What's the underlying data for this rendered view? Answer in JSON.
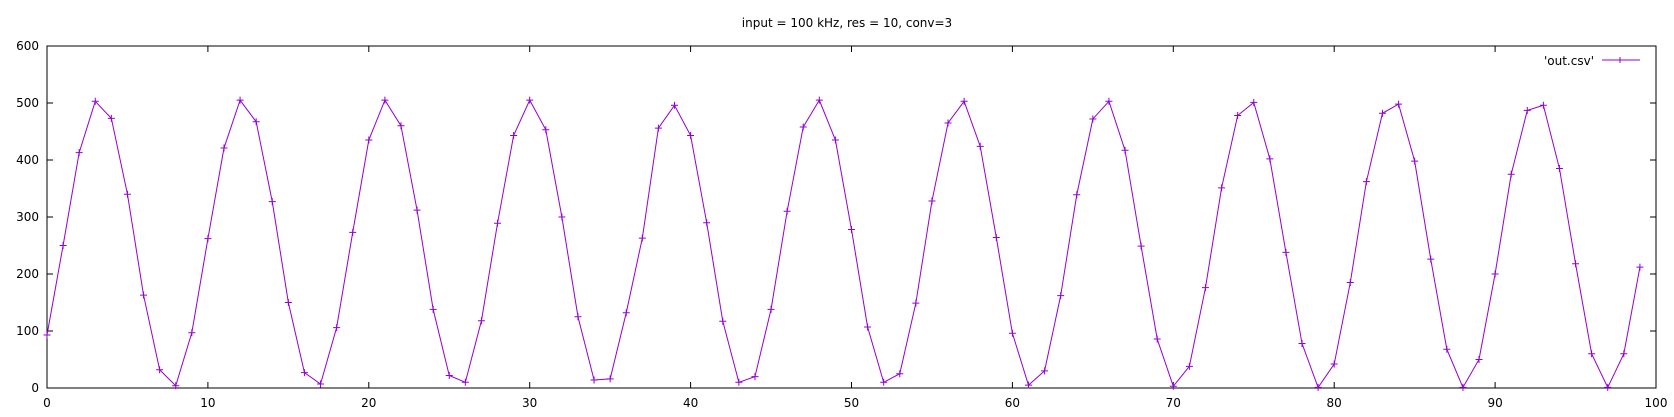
{
  "chart_data": {
    "type": "line",
    "title": "input = 100 kHz, res = 10, conv=3",
    "xlabel": "",
    "ylabel": "",
    "xlim": [
      0,
      100
    ],
    "ylim": [
      0,
      600
    ],
    "x_ticks": [
      0,
      10,
      20,
      30,
      40,
      50,
      60,
      70,
      80,
      90,
      100
    ],
    "y_ticks": [
      0,
      100,
      200,
      300,
      400,
      500,
      600
    ],
    "grid": false,
    "legend_position": "top-right",
    "series": [
      {
        "name": "'out.csv'",
        "color": "#9400d3",
        "marker": "plus",
        "x": [
          0,
          1,
          2,
          3,
          4,
          5,
          6,
          7,
          8,
          9,
          10,
          11,
          12,
          13,
          14,
          15,
          16,
          17,
          18,
          19,
          20,
          21,
          22,
          23,
          24,
          25,
          26,
          27,
          28,
          29,
          30,
          31,
          32,
          33,
          34,
          35,
          36,
          37,
          38,
          39,
          40,
          41,
          42,
          43,
          44,
          45,
          46,
          47,
          48,
          49,
          50,
          51,
          52,
          53,
          54,
          55,
          56,
          57,
          58,
          59,
          60,
          61,
          62,
          63,
          64,
          65,
          66,
          67,
          68,
          69,
          70,
          71,
          72,
          73,
          74,
          75,
          76,
          77,
          78,
          79,
          80,
          81,
          82,
          83,
          84,
          85,
          86,
          87,
          88,
          89,
          90,
          91,
          92,
          93,
          94,
          95,
          96,
          97,
          98,
          99
        ],
        "y": [
          93,
          250,
          413,
          503,
          473,
          340,
          163,
          32,
          4,
          97,
          262,
          421,
          505,
          467,
          327,
          150,
          27,
          7,
          106,
          273,
          435,
          505,
          460,
          312,
          138,
          22,
          10,
          118,
          289,
          443,
          505,
          453,
          300,
          125,
          14,
          16,
          132,
          263,
          456,
          496,
          443,
          290,
          117,
          10,
          20,
          138,
          310,
          458,
          505,
          435,
          278,
          107,
          10,
          25,
          149,
          328,
          465,
          503,
          424,
          264,
          96,
          5,
          30,
          162,
          339,
          472,
          503,
          417,
          249,
          86,
          3,
          38,
          176,
          351,
          478,
          501,
          402,
          238,
          78,
          1,
          42,
          185,
          362,
          482,
          498,
          398,
          226,
          68,
          1,
          50,
          200,
          375,
          487,
          496,
          385,
          218,
          60,
          1,
          60,
          212
        ]
      }
    ]
  }
}
